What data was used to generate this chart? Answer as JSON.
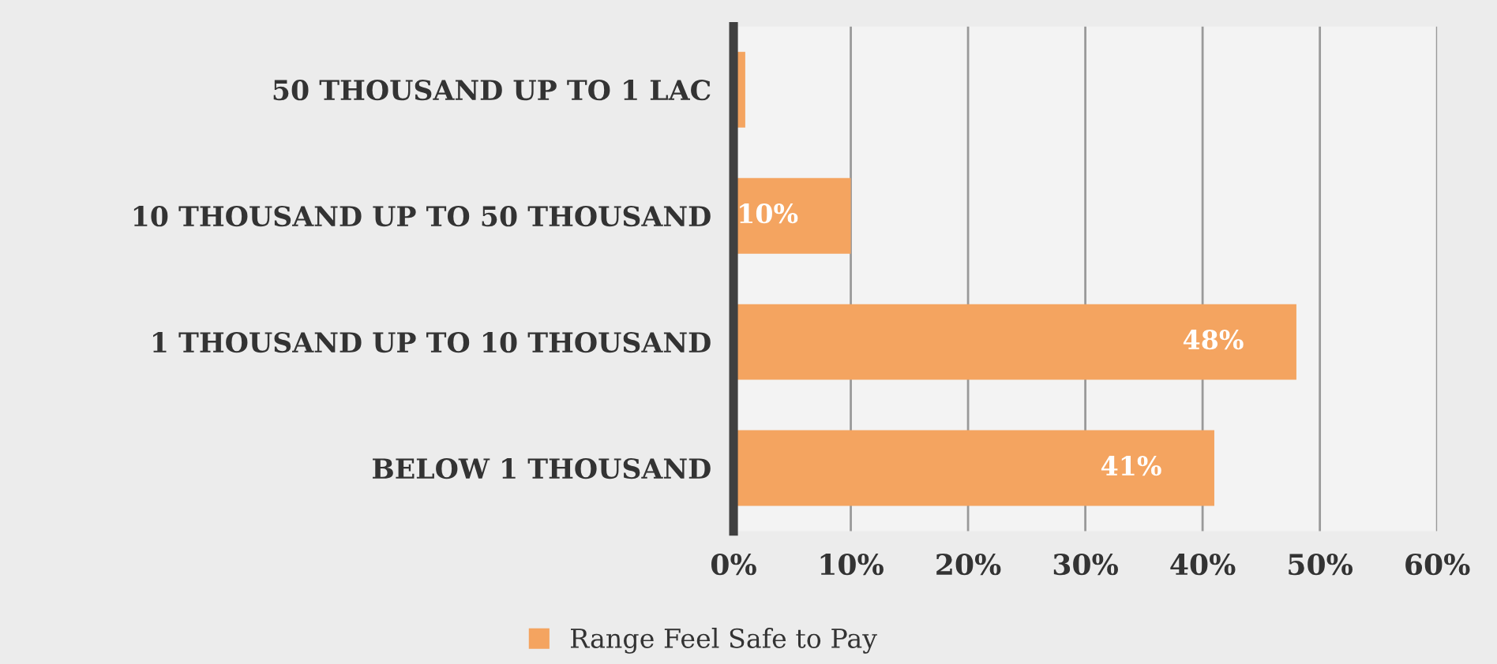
{
  "chart_data": {
    "type": "bar",
    "orientation": "horizontal",
    "categories": [
      "50 THOUSAND UP TO 1 LAC",
      "10 THOUSAND UP TO 50 THOUSAND",
      "1 THOUSAND UP TO 10 THOUSAND",
      "BELOW 1 THOUSAND"
    ],
    "series": [
      {
        "name": "Range Feel Safe to Pay",
        "color": "#f4a460",
        "values": [
          1,
          10,
          48,
          41
        ],
        "value_labels": [
          null,
          "10%",
          "48%",
          "41%"
        ]
      }
    ],
    "xlim": [
      0,
      60
    ],
    "xticks": [
      {
        "value": 0,
        "label": "0%"
      },
      {
        "value": 10,
        "label": "10%"
      },
      {
        "value": 20,
        "label": "20%"
      },
      {
        "value": 30,
        "label": "30%"
      },
      {
        "value": 40,
        "label": "40%"
      },
      {
        "value": 50,
        "label": "50%"
      },
      {
        "value": 60,
        "label": "60%"
      }
    ],
    "grid": "x",
    "legend": "bottom"
  }
}
